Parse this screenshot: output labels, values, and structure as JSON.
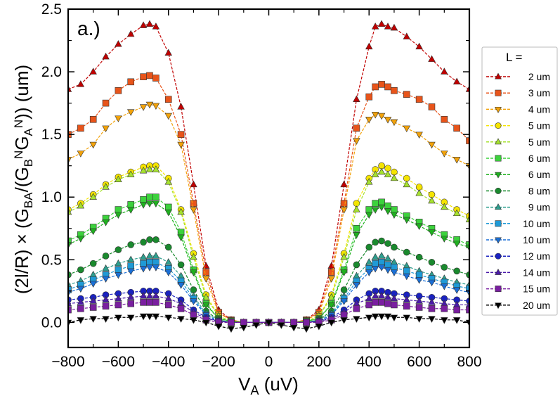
{
  "chart_data": {
    "type": "scatter",
    "panel_label": "a.)",
    "xlabel_main": "V",
    "xlabel_sub": "A",
    "xlabel_rest": " (uV)",
    "ylabel": "(2l/R) × (GBA/(GBN GAN)) (um)",
    "xlim": [
      -800,
      800
    ],
    "ylim": [
      -0.2,
      2.5
    ],
    "xticks": [
      -800,
      -600,
      -400,
      -200,
      0,
      200,
      400,
      600,
      800
    ],
    "xtick_labels": [
      "−800",
      "−600",
      "−400",
      "−200",
      "0",
      "200",
      "400",
      "600",
      "800"
    ],
    "yticks": [
      0.0,
      0.5,
      1.0,
      1.5,
      2.0,
      2.5
    ],
    "ytick_labels": [
      "0.0",
      "0.5",
      "1.0",
      "1.5",
      "2.0",
      "2.5"
    ],
    "grid": false,
    "legend_position": "right",
    "legend_title": "L =",
    "x": [
      -800,
      -750,
      -700,
      -650,
      -600,
      -550,
      -500,
      -475,
      -450,
      -400,
      -350,
      -300,
      -250,
      -200,
      -150,
      -100,
      -50,
      0,
      50,
      100,
      150,
      200,
      250,
      300,
      350,
      400,
      425,
      450,
      475,
      500,
      550,
      600,
      650,
      700,
      750,
      800
    ],
    "series": [
      {
        "name": "2 um",
        "color": "#c00000",
        "marker": "triangle-up",
        "values": [
          1.86,
          1.9,
          2.0,
          2.12,
          2.22,
          2.3,
          2.37,
          2.38,
          2.36,
          2.15,
          1.72,
          1.1,
          0.45,
          0.1,
          0.02,
          0.0,
          0.0,
          0.0,
          0.0,
          0.0,
          0.02,
          0.1,
          0.45,
          1.1,
          1.78,
          2.2,
          2.36,
          2.38,
          2.36,
          2.35,
          2.28,
          2.2,
          2.1,
          2.0,
          1.92,
          1.86
        ]
      },
      {
        "name": "3 um",
        "color": "#e8541a",
        "marker": "square",
        "values": [
          1.5,
          1.55,
          1.62,
          1.75,
          1.85,
          1.92,
          1.96,
          1.97,
          1.95,
          1.78,
          1.5,
          0.95,
          0.4,
          0.08,
          0.02,
          0.0,
          0.0,
          0.0,
          0.0,
          0.0,
          0.02,
          0.08,
          0.4,
          0.95,
          1.55,
          1.8,
          1.88,
          1.9,
          1.88,
          1.85,
          1.82,
          1.78,
          1.72,
          1.62,
          1.55,
          1.45
        ]
      },
      {
        "name": "4 um",
        "color": "#f2a20a",
        "marker": "triangle-down",
        "values": [
          1.3,
          1.35,
          1.42,
          1.55,
          1.63,
          1.68,
          1.72,
          1.74,
          1.73,
          1.65,
          1.42,
          0.9,
          0.35,
          0.07,
          0.02,
          0.0,
          0.0,
          0.0,
          0.0,
          0.0,
          0.02,
          0.07,
          0.35,
          0.9,
          1.45,
          1.62,
          1.66,
          1.65,
          1.62,
          1.6,
          1.55,
          1.5,
          1.42,
          1.35,
          1.3,
          1.25
        ]
      },
      {
        "name": "5 um",
        "color": "#f5e400",
        "marker": "circle",
        "values": [
          0.9,
          0.95,
          1.02,
          1.1,
          1.16,
          1.2,
          1.24,
          1.25,
          1.25,
          1.15,
          0.9,
          0.55,
          0.22,
          0.05,
          0.01,
          0.0,
          0.0,
          0.0,
          0.0,
          0.0,
          0.01,
          0.05,
          0.22,
          0.55,
          0.95,
          1.15,
          1.22,
          1.25,
          1.23,
          1.2,
          1.15,
          1.08,
          1.02,
          0.96,
          0.9,
          0.85
        ]
      },
      {
        "name": "5 um",
        "color": "#a6e22e",
        "marker": "triangle-up",
        "values": [
          0.88,
          0.93,
          1.0,
          1.08,
          1.14,
          1.18,
          1.21,
          1.22,
          1.22,
          1.12,
          0.88,
          0.52,
          0.2,
          0.05,
          0.01,
          0.0,
          0.0,
          0.0,
          0.0,
          0.0,
          0.01,
          0.05,
          0.2,
          0.52,
          0.9,
          1.12,
          1.18,
          1.2,
          1.18,
          1.15,
          1.1,
          1.03,
          0.97,
          0.92,
          0.87,
          0.82
        ]
      },
      {
        "name": "6 um",
        "color": "#3cd23c",
        "marker": "square",
        "values": [
          0.65,
          0.7,
          0.76,
          0.83,
          0.9,
          0.94,
          0.98,
          1.0,
          1.0,
          0.92,
          0.72,
          0.42,
          0.15,
          0.03,
          0.01,
          0.0,
          0.0,
          0.0,
          0.0,
          0.0,
          0.01,
          0.03,
          0.15,
          0.42,
          0.75,
          0.9,
          0.95,
          0.96,
          0.93,
          0.9,
          0.85,
          0.8,
          0.75,
          0.7,
          0.66,
          0.62
        ]
      },
      {
        "name": "6 um",
        "color": "#1fb01f",
        "marker": "triangle-down",
        "values": [
          0.62,
          0.67,
          0.73,
          0.8,
          0.86,
          0.9,
          0.94,
          0.95,
          0.95,
          0.88,
          0.68,
          0.4,
          0.14,
          0.03,
          0.01,
          0.0,
          0.0,
          0.0,
          0.0,
          0.0,
          0.01,
          0.03,
          0.14,
          0.4,
          0.7,
          0.86,
          0.9,
          0.92,
          0.89,
          0.86,
          0.82,
          0.77,
          0.72,
          0.67,
          0.63,
          0.6
        ]
      },
      {
        "name": "8 um",
        "color": "#1a8a2e",
        "marker": "circle",
        "values": [
          0.38,
          0.42,
          0.47,
          0.53,
          0.58,
          0.62,
          0.64,
          0.66,
          0.66,
          0.6,
          0.46,
          0.26,
          0.09,
          0.02,
          0.0,
          0.0,
          0.0,
          0.0,
          0.0,
          0.0,
          0.0,
          0.02,
          0.09,
          0.26,
          0.46,
          0.6,
          0.64,
          0.65,
          0.63,
          0.6,
          0.56,
          0.52,
          0.48,
          0.44,
          0.41,
          0.38
        ]
      },
      {
        "name": "9 um",
        "color": "#2e9e8e",
        "marker": "triangle-up",
        "values": [
          0.3,
          0.33,
          0.38,
          0.43,
          0.47,
          0.5,
          0.52,
          0.53,
          0.53,
          0.48,
          0.37,
          0.21,
          0.07,
          0.02,
          0.0,
          0.0,
          0.0,
          0.0,
          0.0,
          0.0,
          0.0,
          0.02,
          0.07,
          0.21,
          0.37,
          0.48,
          0.52,
          0.53,
          0.51,
          0.48,
          0.45,
          0.41,
          0.38,
          0.35,
          0.32,
          0.3
        ]
      },
      {
        "name": "10 um",
        "color": "#1f9ad6",
        "marker": "square",
        "values": [
          0.26,
          0.3,
          0.34,
          0.38,
          0.42,
          0.45,
          0.47,
          0.48,
          0.48,
          0.43,
          0.33,
          0.19,
          0.06,
          0.01,
          0.0,
          0.0,
          0.0,
          0.0,
          0.0,
          0.0,
          0.0,
          0.01,
          0.06,
          0.19,
          0.33,
          0.43,
          0.47,
          0.48,
          0.46,
          0.44,
          0.41,
          0.38,
          0.35,
          0.32,
          0.29,
          0.27
        ]
      },
      {
        "name": "10 um",
        "color": "#1a6fd6",
        "marker": "triangle-down",
        "values": [
          0.24,
          0.27,
          0.31,
          0.35,
          0.38,
          0.41,
          0.43,
          0.44,
          0.44,
          0.4,
          0.3,
          0.17,
          0.06,
          0.01,
          0.0,
          0.0,
          0.0,
          0.0,
          0.0,
          0.0,
          0.0,
          0.01,
          0.06,
          0.17,
          0.3,
          0.4,
          0.43,
          0.44,
          0.42,
          0.4,
          0.37,
          0.34,
          0.32,
          0.29,
          0.26,
          0.24
        ]
      },
      {
        "name": "12 um",
        "color": "#1a22c0",
        "marker": "circle",
        "values": [
          0.18,
          0.19,
          0.2,
          0.22,
          0.23,
          0.24,
          0.25,
          0.25,
          0.25,
          0.23,
          0.18,
          0.1,
          0.04,
          0.01,
          0.0,
          0.0,
          0.0,
          0.0,
          0.0,
          0.0,
          0.0,
          0.01,
          0.04,
          0.1,
          0.18,
          0.23,
          0.25,
          0.25,
          0.24,
          0.23,
          0.22,
          0.21,
          0.2,
          0.19,
          0.18,
          0.17
        ]
      },
      {
        "name": "14 um",
        "color": "#4a1aa8",
        "marker": "triangle-up",
        "values": [
          0.15,
          0.16,
          0.17,
          0.18,
          0.19,
          0.2,
          0.21,
          0.21,
          0.21,
          0.19,
          0.15,
          0.08,
          0.03,
          0.01,
          0.0,
          0.0,
          0.0,
          0.0,
          0.0,
          0.0,
          0.0,
          0.01,
          0.03,
          0.08,
          0.15,
          0.19,
          0.21,
          0.21,
          0.2,
          0.19,
          0.18,
          0.17,
          0.16,
          0.15,
          0.14,
          0.14
        ]
      },
      {
        "name": "15 um",
        "color": "#7a1fa0",
        "marker": "square",
        "values": [
          0.1,
          0.11,
          0.12,
          0.13,
          0.14,
          0.15,
          0.16,
          0.16,
          0.16,
          0.14,
          0.11,
          0.06,
          0.02,
          0.0,
          0.0,
          0.0,
          0.0,
          0.0,
          0.0,
          0.0,
          0.0,
          0.0,
          0.02,
          0.06,
          0.11,
          0.14,
          0.16,
          0.16,
          0.15,
          0.14,
          0.13,
          0.12,
          0.11,
          0.11,
          0.1,
          0.1
        ]
      },
      {
        "name": "20 um",
        "color": "#000000",
        "marker": "triangle-down",
        "values": [
          0.0,
          0.02,
          0.03,
          0.03,
          0.04,
          0.04,
          0.05,
          0.05,
          0.05,
          0.04,
          0.03,
          0.02,
          0.0,
          -0.03,
          -0.05,
          -0.04,
          -0.02,
          0.0,
          -0.02,
          -0.04,
          -0.05,
          -0.03,
          0.0,
          0.02,
          0.03,
          0.04,
          0.05,
          0.05,
          0.05,
          0.04,
          0.04,
          0.03,
          0.03,
          0.02,
          0.02,
          0.0
        ]
      }
    ]
  }
}
